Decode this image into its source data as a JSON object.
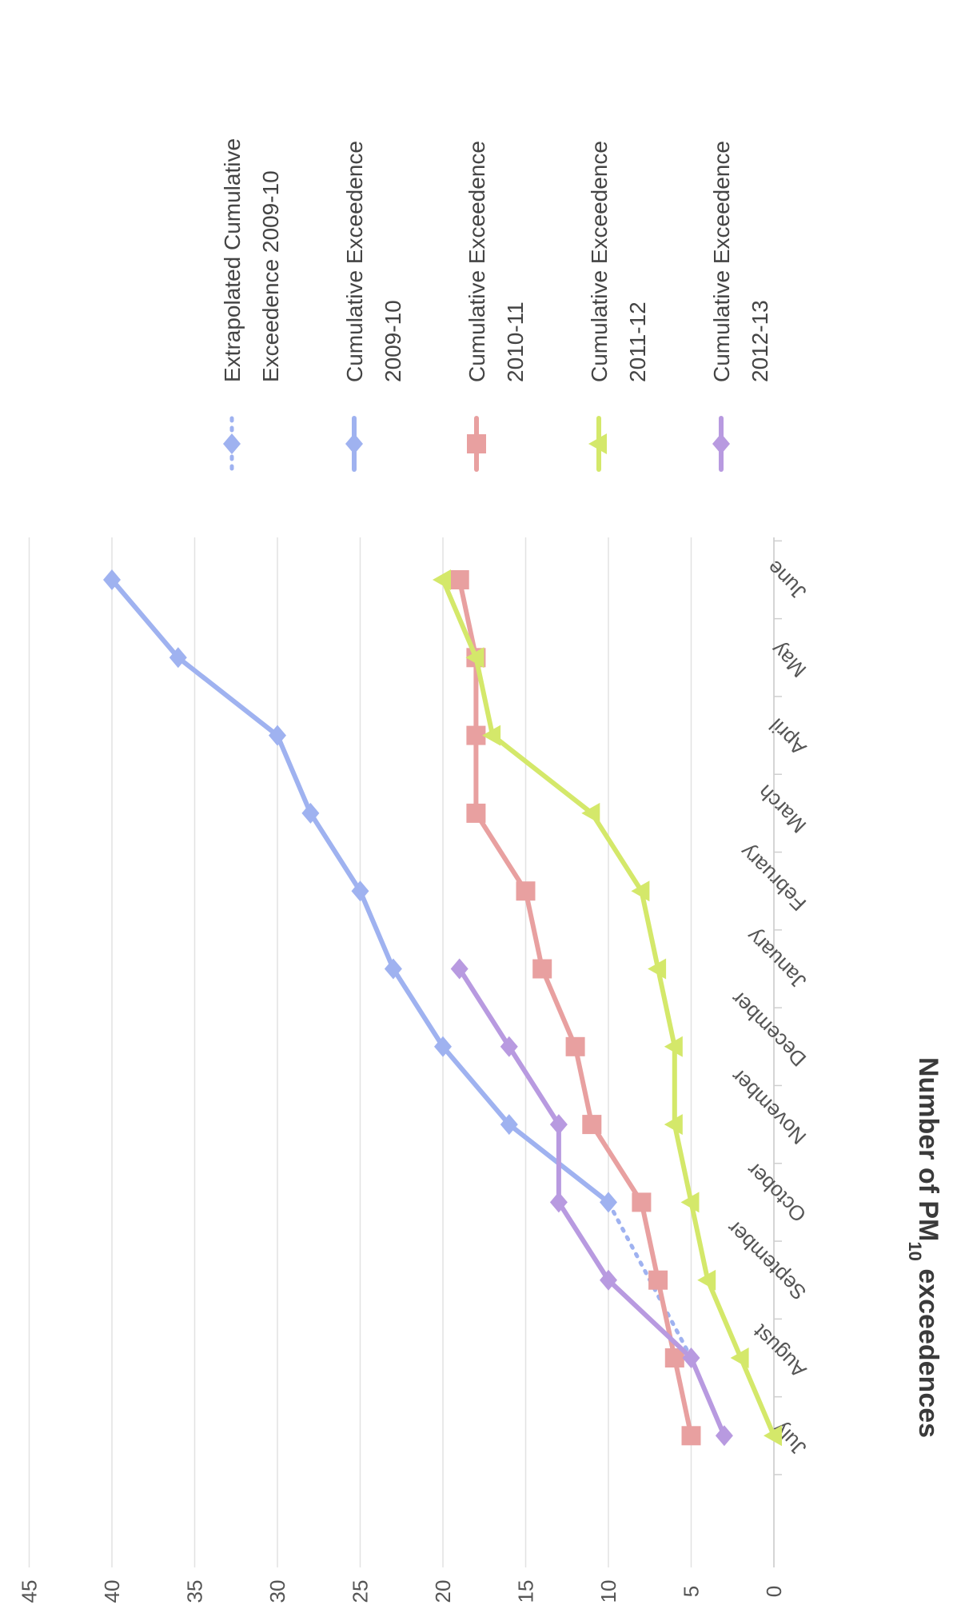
{
  "chart_data": {
    "type": "line",
    "orientation": "rotated-90-clockwise",
    "title": "",
    "xlabel": "",
    "ylabel": "Number of PM10 exceedences",
    "ylabel_parts": {
      "pre": "Number of PM",
      "sub": "10",
      "post": " exceedences"
    },
    "ylim": [
      0,
      45
    ],
    "yticks": [
      "0",
      "5",
      "10",
      "15",
      "20",
      "25",
      "30",
      "35",
      "40",
      "45"
    ],
    "grid": true,
    "legend_position": "right",
    "categories": [
      "July",
      "August",
      "September",
      "October",
      "November",
      "December",
      "January",
      "February",
      "March",
      "April",
      "May",
      "June"
    ],
    "series": [
      {
        "name": "Extrapolated Cumulative Exceedence 2009-10",
        "legend_lines": [
          "Extrapolated Cumulative",
          "Exceedence 2009-10"
        ],
        "color": "#9fb2f0",
        "marker": "diamond",
        "dashed": true,
        "values": [
          null,
          5,
          7.5,
          10,
          null,
          null,
          null,
          null,
          null,
          null,
          null,
          null
        ]
      },
      {
        "name": "Cumulative Exceedence 2009-10",
        "legend_lines": [
          "Cumulative Exceedence",
          "2009-10"
        ],
        "color": "#9fb2f0",
        "marker": "diamond",
        "dashed": false,
        "values": [
          null,
          null,
          null,
          10,
          16,
          20,
          23,
          25,
          28,
          30,
          36,
          40
        ]
      },
      {
        "name": "Cumulative Exceedence 2010-11",
        "legend_lines": [
          "Cumulative Exceedence",
          "2010-11"
        ],
        "color": "#e8a0a0",
        "marker": "square",
        "dashed": false,
        "values": [
          5,
          6,
          7,
          8,
          11,
          12,
          14,
          15,
          18,
          18,
          18,
          19
        ]
      },
      {
        "name": "Cumulative Exceedence 2011-12",
        "legend_lines": [
          "Cumulative Exceedence",
          "2011-12"
        ],
        "color": "#d4e86a",
        "marker": "triangle",
        "dashed": false,
        "values": [
          0,
          2,
          4,
          5,
          6,
          6,
          7,
          8,
          11,
          17,
          18,
          20
        ]
      },
      {
        "name": "Cumulative Exceedence 2012-13",
        "legend_lines": [
          "Cumulative Exceedence",
          "2012-13"
        ],
        "color": "#b89ae0",
        "marker": "diamond",
        "dashed": false,
        "values": [
          3,
          5,
          10,
          13,
          13,
          16,
          19,
          null,
          null,
          null,
          null,
          null
        ]
      }
    ]
  }
}
